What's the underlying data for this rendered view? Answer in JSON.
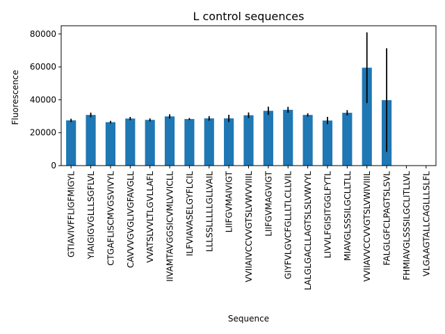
{
  "chart_data": {
    "type": "bar",
    "title": "L control sequences",
    "xlabel": "Sequence",
    "ylabel": "Fluorescence",
    "ylim": [
      0,
      85000
    ],
    "yticks": [
      0,
      20000,
      40000,
      60000,
      80000
    ],
    "grid": false,
    "color": "#1f77b4",
    "categories": [
      "GTIAVIVFFLIGFMIGYL",
      "YIAIGIGVGLLLSGFLVL",
      "CTGAFLISCMVGSVIVYL",
      "CAVVVGVGLIVGFAVGLL",
      "VVATSLVVLTLGVLLAFL",
      "IIVAMTAVGGSICVMLVVICLL",
      "ILFVIAVASELGYFLCIL",
      "LLLSSLLLLLGLLVAIL",
      "LIIFGVMAIVIGT",
      "VVIIAIVCCVVGTSLVWVVIIIL",
      "LIIFGVMAGVIGT",
      "GIYFVLGVCFGLLLTLCLLVIL",
      "LALGLGACLLAGTSLSLVWVYL",
      "LIVVLFGISITGGLFYTL",
      "MIAVGLSSSILGCLLTLL",
      "VVIIAVVCCVVGTSLVWIVIIIL",
      "FALGLGFCLPAGTSLSVL",
      "FHMIAVGLSSSILGCLITLLVL",
      "VLGAAGTALLCAGLLLSLFL"
    ],
    "values": [
      27500,
      30800,
      26400,
      28600,
      27800,
      29900,
      28300,
      28700,
      28700,
      30600,
      33300,
      33900,
      30800,
      27400,
      32100,
      59500,
      39800,
      0,
      0
    ],
    "errors": [
      1000,
      1400,
      800,
      1000,
      900,
      1300,
      600,
      1400,
      2200,
      1700,
      2500,
      1800,
      1000,
      2200,
      1600,
      21500,
      31500,
      0,
      0
    ]
  }
}
